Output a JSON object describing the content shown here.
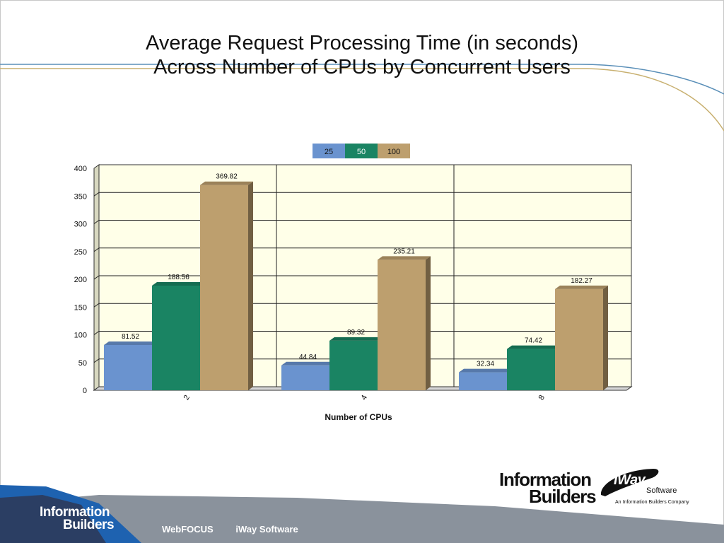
{
  "slide": {
    "title_line1": "Average Request Processing Time (in seconds)",
    "title_line2": "Across Number of CPUs by Concurrent Users"
  },
  "chart_data": {
    "type": "bar",
    "categories": [
      "2",
      "4",
      "8"
    ],
    "series": [
      {
        "name": "25",
        "values": [
          81.52,
          44.84,
          32.34
        ],
        "labels": [
          "81.52",
          "44.84",
          "32.34"
        ]
      },
      {
        "name": "50",
        "values": [
          188.56,
          89.32,
          74.42
        ],
        "labels": [
          "188.56",
          "89.32",
          "74.42"
        ]
      },
      {
        "name": "100",
        "values": [
          369.82,
          235.21,
          182.27
        ],
        "labels": [
          "369.82",
          "235.21",
          "182.27"
        ]
      }
    ],
    "xlabel": "Number of CPUs",
    "ylabel": "",
    "ylim": [
      0,
      400
    ],
    "yticks": [
      "0",
      "50",
      "100",
      "150",
      "200",
      "250",
      "300",
      "350",
      "400"
    ],
    "grid": true,
    "legend_position": "top-center",
    "colors": [
      "#6a93cf",
      "#1a8463",
      "#bd9f6e"
    ],
    "plot_background": "#ffffe8"
  },
  "footer": {
    "brand_line1": "Information",
    "brand_line2": "Builders",
    "link_webfocus": "WebFOCUS",
    "link_iway": "iWay Software"
  },
  "logos": {
    "ib_line1": "Information",
    "ib_line2": "Builders",
    "iway_mark": "iWay",
    "iway_software": "Software",
    "iway_tagline": "An Information Builders Company"
  }
}
